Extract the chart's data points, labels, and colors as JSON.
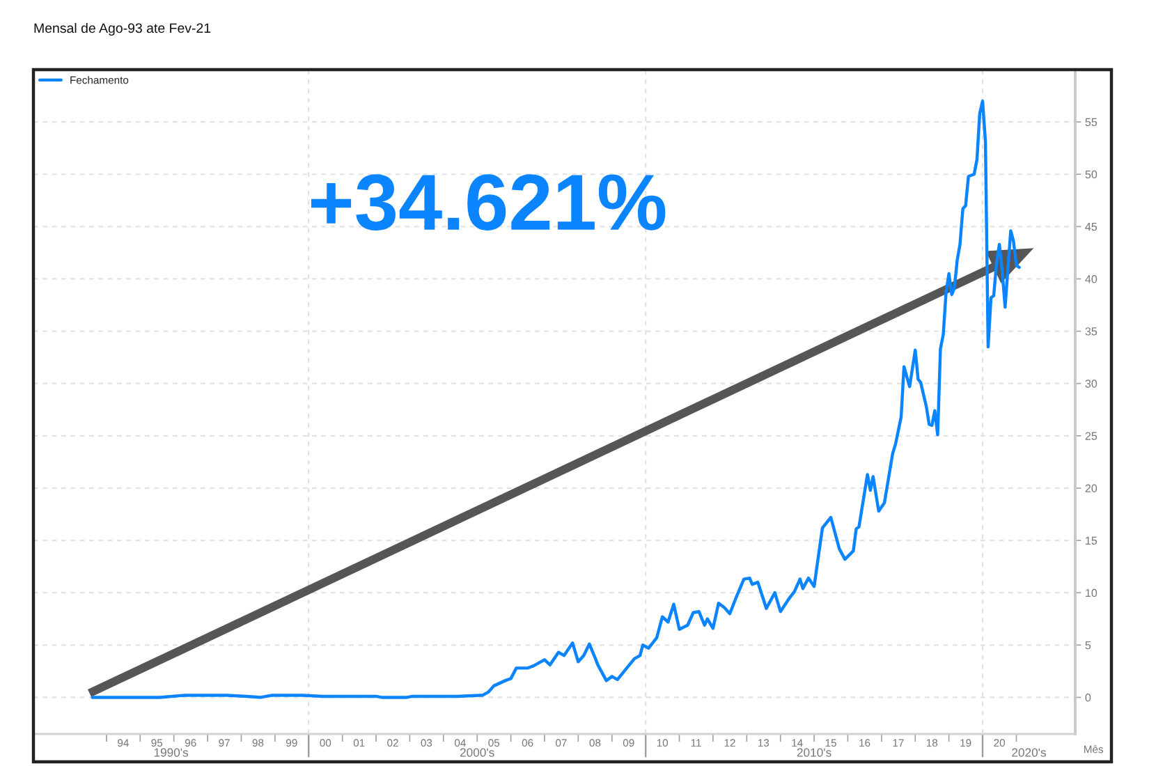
{
  "chart_data": {
    "type": "line",
    "title": "Mensal de Ago-93 ate Fev-21",
    "xlabel": "Mês",
    "annotations": [
      "+34.621%",
      "1990's",
      "2000's",
      "2010's",
      "2020's"
    ],
    "x": [
      "1993-08",
      "1994-06",
      "1995-08",
      "1996-05",
      "1997-08",
      "1998-03",
      "1998-08",
      "1998-12",
      "1999-11",
      "2000-06",
      "2001-06",
      "2002-01",
      "2002-03",
      "2002-12",
      "2003-02",
      "2004-06",
      "2005-02",
      "2005-03",
      "2005-05",
      "2005-07",
      "2005-11",
      "2006-01",
      "2006-03",
      "2006-07",
      "2006-09",
      "2007-01",
      "2007-03",
      "2007-06",
      "2007-08",
      "2007-11",
      "2008-01",
      "2008-03",
      "2008-05",
      "2008-07",
      "2008-08",
      "2008-11",
      "2009-01",
      "2009-03",
      "2009-06",
      "2009-09",
      "2009-11",
      "2009-12",
      "2010-02",
      "2010-05",
      "2010-07",
      "2010-09",
      "2010-11",
      "2011-01",
      "2011-04",
      "2011-06",
      "2011-08",
      "2011-10",
      "2011-11",
      "2012-01",
      "2012-03",
      "2012-05",
      "2012-07",
      "2012-09",
      "2012-12",
      "2013-02",
      "2013-03",
      "2013-05",
      "2013-08",
      "2013-11",
      "2014-01",
      "2014-04",
      "2014-06",
      "2014-08",
      "2014-09",
      "2014-11",
      "2015-01",
      "2015-04",
      "2015-07",
      "2015-10",
      "2015-12",
      "2016-03",
      "2016-04",
      "2016-05",
      "2016-08",
      "2016-09",
      "2016-10",
      "2016-12",
      "2017-02",
      "2017-05",
      "2017-06",
      "2017-08",
      "2017-09",
      "2017-11",
      "2018-01",
      "2018-02",
      "2018-03",
      "2018-05",
      "2018-06",
      "2018-07",
      "2018-08",
      "2018-09",
      "2018-10",
      "2018-11",
      "2018-12",
      "2019-01",
      "2019-02",
      "2019-03",
      "2019-04",
      "2019-05",
      "2019-06",
      "2019-07",
      "2019-08",
      "2019-10",
      "2019-11",
      "2019-12",
      "2020-01",
      "2020-02",
      "2020-03",
      "2020-04",
      "2020-05",
      "2020-06",
      "2020-07",
      "2020-08",
      "2020-09",
      "2020-11",
      "2020-12",
      "2021-01",
      "2021-02"
    ],
    "series": [
      {
        "type": "line",
        "x": [
          "1993-07",
          "2021-03"
        ],
        "values": [
          0.4,
          42.4
        ],
        "color": "#565656"
      },
      {
        "name": "Fechamento",
        "color": "#0a84ff",
        "values": [
          0.0,
          0.0,
          0.0,
          0.2,
          0.2,
          0.1,
          0.0,
          0.2,
          0.2,
          0.1,
          0.1,
          0.1,
          0.0,
          0.0,
          0.1,
          0.1,
          0.2,
          0.2,
          0.5,
          1.1,
          1.6,
          1.8,
          2.8,
          2.8,
          3.0,
          3.6,
          3.1,
          4.3,
          4.0,
          5.2,
          3.4,
          4.0,
          5.1,
          3.8,
          3.1,
          1.6,
          2.0,
          1.7,
          2.7,
          3.7,
          4.0,
          5.0,
          4.7,
          5.7,
          7.7,
          7.2,
          8.9,
          6.5,
          6.9,
          8.1,
          8.2,
          6.9,
          7.5,
          6.6,
          9.0,
          8.6,
          8.0,
          9.4,
          11.3,
          11.4,
          10.8,
          11.0,
          8.5,
          10.0,
          8.2,
          9.4,
          10.1,
          11.3,
          10.4,
          11.4,
          10.6,
          16.2,
          17.2,
          14.2,
          13.2,
          14.0,
          16.1,
          16.3,
          21.3,
          19.8,
          21.1,
          17.8,
          18.6,
          23.3,
          24.2,
          26.8,
          31.6,
          29.7,
          33.2,
          30.4,
          30.1,
          27.8,
          26.1,
          26.0,
          27.4,
          25.1,
          33.3,
          34.7,
          38.7,
          40.5,
          38.5,
          39.1,
          41.8,
          43.3,
          46.7,
          47.0,
          49.8,
          50.0,
          51.4,
          55.8,
          57.0,
          53.1,
          33.5,
          38.2,
          38.4,
          41.6,
          43.3,
          40.7,
          37.3,
          44.6,
          43.6,
          41.3,
          41.1
        ]
      }
    ],
    "xlim": [
      "1991-11",
      "2022-10"
    ],
    "xticks": [
      {
        "value": "1994-01",
        "label": null
      },
      {
        "value": "1994-07",
        "label": "94"
      },
      {
        "value": "1995-01",
        "label": null
      },
      {
        "value": "1995-07",
        "label": "95"
      },
      {
        "value": "1996-01",
        "label": null
      },
      {
        "value": "1996-07",
        "label": "96"
      },
      {
        "value": "1997-01",
        "label": null
      },
      {
        "value": "1997-07",
        "label": "97"
      },
      {
        "value": "1998-01",
        "label": null
      },
      {
        "value": "1998-07",
        "label": "98"
      },
      {
        "value": "1999-01",
        "label": null
      },
      {
        "value": "1999-07",
        "label": "99"
      },
      {
        "value": "2000-01",
        "label": null
      },
      {
        "value": "2000-07",
        "label": "00"
      },
      {
        "value": "2001-01",
        "label": null
      },
      {
        "value": "2001-07",
        "label": "01"
      },
      {
        "value": "2002-01",
        "label": null
      },
      {
        "value": "2002-07",
        "label": "02"
      },
      {
        "value": "2003-01",
        "label": null
      },
      {
        "value": "2003-07",
        "label": "03"
      },
      {
        "value": "2004-01",
        "label": null
      },
      {
        "value": "2004-07",
        "label": "04"
      },
      {
        "value": "2005-01",
        "label": null
      },
      {
        "value": "2005-07",
        "label": "05"
      },
      {
        "value": "2006-01",
        "label": null
      },
      {
        "value": "2006-07",
        "label": "06"
      },
      {
        "value": "2007-01",
        "label": null
      },
      {
        "value": "2007-07",
        "label": "07"
      },
      {
        "value": "2008-01",
        "label": null
      },
      {
        "value": "2008-07",
        "label": "08"
      },
      {
        "value": "2009-01",
        "label": null
      },
      {
        "value": "2009-07",
        "label": "09"
      },
      {
        "value": "2010-01",
        "label": null
      },
      {
        "value": "2010-07",
        "label": "10"
      },
      {
        "value": "2011-01",
        "label": null
      },
      {
        "value": "2011-07",
        "label": "11"
      },
      {
        "value": "2012-01",
        "label": null
      },
      {
        "value": "2012-07",
        "label": "12"
      },
      {
        "value": "2013-01",
        "label": null
      },
      {
        "value": "2013-07",
        "label": "13"
      },
      {
        "value": "2014-01",
        "label": null
      },
      {
        "value": "2014-07",
        "label": "14"
      },
      {
        "value": "2015-01",
        "label": null
      },
      {
        "value": "2015-07",
        "label": "15"
      },
      {
        "value": "2016-01",
        "label": null
      },
      {
        "value": "2016-07",
        "label": "16"
      },
      {
        "value": "2017-01",
        "label": null
      },
      {
        "value": "2017-07",
        "label": "17"
      },
      {
        "value": "2018-01",
        "label": null
      },
      {
        "value": "2018-07",
        "label": "18"
      },
      {
        "value": "2019-01",
        "label": null
      },
      {
        "value": "2019-07",
        "label": "19"
      },
      {
        "value": "2020-01",
        "label": null
      },
      {
        "value": "2020-07",
        "label": "20"
      },
      {
        "value": "2021-01",
        "label": null
      }
    ],
    "ref_lines": [
      {
        "axis": "x",
        "value": "2000-01",
        "color": "#e2e2e2",
        "line_style": "dashed"
      },
      {
        "axis": "x",
        "value": "2010-01",
        "color": "#e2e2e2",
        "line_style": "dashed"
      },
      {
        "axis": "x",
        "value": "2020-01",
        "color": "#e2e2e2",
        "line_style": "dashed"
      }
    ],
    "ylim": [
      -3.5,
      60
    ],
    "yticks": [
      0,
      5,
      10,
      15,
      20,
      25,
      30,
      35,
      40,
      45,
      50,
      55
    ],
    "grid": "y",
    "legend": "top left"
  }
}
